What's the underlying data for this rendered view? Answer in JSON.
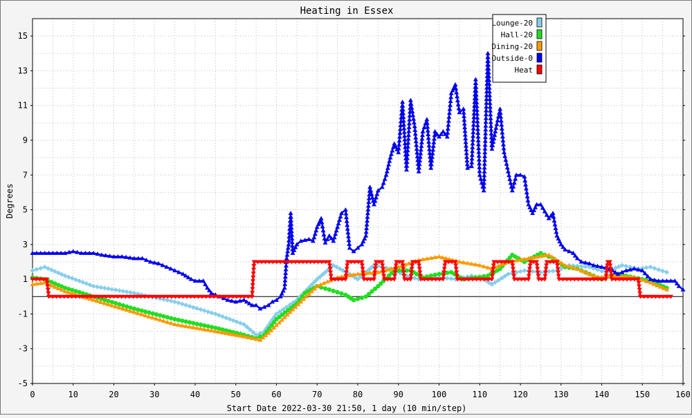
{
  "chart_data": {
    "type": "line",
    "title": "Heating in Essex",
    "xlabel": "Start Date 2022-03-30 21:50, 1 day (10 min/step)",
    "ylabel": "Degrees",
    "xlim": [
      0,
      160
    ],
    "ylim": [
      -5,
      16
    ],
    "x_ticks": [
      0,
      10,
      20,
      30,
      40,
      50,
      60,
      70,
      80,
      90,
      100,
      110,
      120,
      130,
      140,
      150,
      160
    ],
    "y_ticks": [
      -5,
      -3,
      -1,
      1,
      3,
      5,
      7,
      9,
      11,
      13,
      15
    ],
    "grid": true,
    "legend_position": "top-right",
    "series": [
      {
        "name": "Lounge-20",
        "color": "#87ceeb",
        "marker": "diamond",
        "points": [
          [
            0,
            1.5
          ],
          [
            3,
            1.7
          ],
          [
            8,
            1.2
          ],
          [
            15,
            0.6
          ],
          [
            25,
            0.2
          ],
          [
            35,
            -0.3
          ],
          [
            45,
            -1.0
          ],
          [
            52,
            -1.6
          ],
          [
            55,
            -2.2
          ],
          [
            57,
            -2.0
          ],
          [
            60,
            -1.0
          ],
          [
            65,
            -0.2
          ],
          [
            70,
            1.0
          ],
          [
            74,
            1.8
          ],
          [
            78,
            1.3
          ],
          [
            80,
            1.0
          ],
          [
            84,
            1.8
          ],
          [
            88,
            1.6
          ],
          [
            92,
            1.2
          ],
          [
            95,
            1.0
          ],
          [
            100,
            1.1
          ],
          [
            104,
            1.0
          ],
          [
            108,
            1.2
          ],
          [
            111,
            1.0
          ],
          [
            113,
            0.7
          ],
          [
            117,
            1.3
          ],
          [
            121,
            1.5
          ],
          [
            125,
            1.4
          ],
          [
            129,
            1.5
          ],
          [
            132,
            1.8
          ],
          [
            137,
            1.7
          ],
          [
            141,
            1.4
          ],
          [
            145,
            1.8
          ],
          [
            149,
            1.6
          ],
          [
            152,
            1.7
          ],
          [
            156,
            1.4
          ]
        ]
      },
      {
        "name": "Hall-20",
        "color": "#22dd22",
        "marker": "circle",
        "points": [
          [
            0,
            1.1
          ],
          [
            3,
            1.0
          ],
          [
            8,
            0.5
          ],
          [
            15,
            0.0
          ],
          [
            25,
            -0.7
          ],
          [
            35,
            -1.3
          ],
          [
            45,
            -1.8
          ],
          [
            52,
            -2.2
          ],
          [
            55,
            -2.4
          ],
          [
            57,
            -2.2
          ],
          [
            60,
            -1.3
          ],
          [
            65,
            -0.4
          ],
          [
            67,
            0.2
          ],
          [
            70,
            0.6
          ],
          [
            73,
            0.4
          ],
          [
            77,
            0.1
          ],
          [
            79,
            -0.2
          ],
          [
            82,
            0.0
          ],
          [
            85,
            0.6
          ],
          [
            89,
            1.5
          ],
          [
            93,
            1.5
          ],
          [
            96,
            1.1
          ],
          [
            100,
            1.3
          ],
          [
            103,
            1.4
          ],
          [
            106,
            1.0
          ],
          [
            109,
            1.1
          ],
          [
            112,
            1.2
          ],
          [
            115,
            1.6
          ],
          [
            118,
            2.4
          ],
          [
            121,
            2.0
          ],
          [
            125,
            2.5
          ],
          [
            128,
            2.2
          ],
          [
            131,
            1.7
          ],
          [
            134,
            1.6
          ],
          [
            137,
            1.3
          ],
          [
            140,
            1.0
          ],
          [
            144,
            1.3
          ],
          [
            148,
            1.1
          ],
          [
            152,
            0.9
          ],
          [
            156,
            0.5
          ]
        ]
      },
      {
        "name": "Dining-20",
        "color": "#ff9900",
        "marker": "triangle",
        "points": [
          [
            0,
            0.7
          ],
          [
            3,
            0.8
          ],
          [
            8,
            0.3
          ],
          [
            15,
            -0.2
          ],
          [
            25,
            -0.9
          ],
          [
            35,
            -1.6
          ],
          [
            45,
            -2.0
          ],
          [
            52,
            -2.3
          ],
          [
            56,
            -2.5
          ],
          [
            58,
            -2.1
          ],
          [
            62,
            -1.2
          ],
          [
            66,
            -0.3
          ],
          [
            70,
            0.6
          ],
          [
            75,
            1.1
          ],
          [
            80,
            1.3
          ],
          [
            85,
            1.4
          ],
          [
            90,
            1.7
          ],
          [
            95,
            2.1
          ],
          [
            100,
            2.3
          ],
          [
            105,
            2.0
          ],
          [
            110,
            1.8
          ],
          [
            113,
            1.6
          ],
          [
            117,
            2.0
          ],
          [
            122,
            2.2
          ],
          [
            127,
            2.4
          ],
          [
            131,
            1.8
          ],
          [
            135,
            1.5
          ],
          [
            139,
            1.1
          ],
          [
            143,
            1.2
          ],
          [
            148,
            1.1
          ],
          [
            152,
            0.8
          ],
          [
            156,
            0.4
          ]
        ]
      },
      {
        "name": "Outside-0",
        "color": "#0000ee",
        "marker": "triangle",
        "points": [
          [
            0,
            2.5
          ],
          [
            3,
            2.5
          ],
          [
            5,
            2.5
          ],
          [
            8,
            2.5
          ],
          [
            10,
            2.6
          ],
          [
            12,
            2.5
          ],
          [
            15,
            2.5
          ],
          [
            17,
            2.4
          ],
          [
            20,
            2.3
          ],
          [
            22,
            2.3
          ],
          [
            25,
            2.2
          ],
          [
            27,
            2.2
          ],
          [
            29,
            2.0
          ],
          [
            31,
            1.9
          ],
          [
            33,
            1.7
          ],
          [
            35,
            1.5
          ],
          [
            37,
            1.3
          ],
          [
            39,
            1.0
          ],
          [
            40,
            0.9
          ],
          [
            42,
            0.9
          ],
          [
            43,
            0.5
          ],
          [
            44,
            0.2
          ],
          [
            46,
            0.0
          ],
          [
            48,
            -0.2
          ],
          [
            50,
            -0.3
          ],
          [
            52,
            -0.2
          ],
          [
            54,
            -0.5
          ],
          [
            55,
            -0.5
          ],
          [
            56,
            -0.7
          ],
          [
            57,
            -0.6
          ],
          [
            58,
            -0.5
          ],
          [
            59,
            -0.3
          ],
          [
            60,
            -0.2
          ],
          [
            61,
            0.0
          ],
          [
            62,
            0.5
          ],
          [
            62.5,
            2.2
          ],
          [
            63,
            3.0
          ],
          [
            63.5,
            4.8
          ],
          [
            64,
            2.5
          ],
          [
            65,
            3.0
          ],
          [
            66,
            3.2
          ],
          [
            68,
            3.3
          ],
          [
            69,
            3.2
          ],
          [
            70,
            4.0
          ],
          [
            71,
            4.5
          ],
          [
            72,
            3.1
          ],
          [
            73,
            3.5
          ],
          [
            74,
            3.2
          ],
          [
            75,
            4.0
          ],
          [
            76,
            4.8
          ],
          [
            77,
            5.0
          ],
          [
            78,
            2.8
          ],
          [
            79,
            2.6
          ],
          [
            80,
            2.8
          ],
          [
            81,
            3.0
          ],
          [
            82,
            3.5
          ],
          [
            83,
            6.3
          ],
          [
            84,
            5.3
          ],
          [
            85,
            6.1
          ],
          [
            86,
            6.3
          ],
          [
            87,
            7.0
          ],
          [
            88,
            8.0
          ],
          [
            89,
            8.8
          ],
          [
            90,
            8.3
          ],
          [
            91,
            11.2
          ],
          [
            92,
            7.3
          ],
          [
            93,
            11.3
          ],
          [
            94,
            9.8
          ],
          [
            95,
            7.2
          ],
          [
            96,
            9.5
          ],
          [
            97,
            10.2
          ],
          [
            98,
            7.4
          ],
          [
            99,
            9.5
          ],
          [
            100,
            9.2
          ],
          [
            101,
            9.5
          ],
          [
            102,
            9.2
          ],
          [
            103,
            11.7
          ],
          [
            104,
            12.2
          ],
          [
            105,
            10.6
          ],
          [
            106,
            10.8
          ],
          [
            107,
            7.4
          ],
          [
            108,
            7.5
          ],
          [
            109,
            12.5
          ],
          [
            110,
            7.0
          ],
          [
            111,
            6.1
          ],
          [
            112,
            14.0
          ],
          [
            113,
            8.5
          ],
          [
            114,
            9.7
          ],
          [
            115,
            10.8
          ],
          [
            116,
            8.3
          ],
          [
            117,
            7.2
          ],
          [
            118,
            6.1
          ],
          [
            119,
            7.0
          ],
          [
            120,
            7.0
          ],
          [
            121,
            6.9
          ],
          [
            122,
            5.3
          ],
          [
            123,
            4.8
          ],
          [
            124,
            5.3
          ],
          [
            125,
            5.3
          ],
          [
            126,
            4.9
          ],
          [
            127,
            4.5
          ],
          [
            128,
            4.8
          ],
          [
            129,
            3.5
          ],
          [
            130,
            3.0
          ],
          [
            131,
            2.7
          ],
          [
            132,
            2.6
          ],
          [
            133,
            2.5
          ],
          [
            134,
            2.2
          ],
          [
            135,
            2.0
          ],
          [
            137,
            1.9
          ],
          [
            138,
            1.8
          ],
          [
            140,
            1.7
          ],
          [
            142,
            1.6
          ],
          [
            144,
            1.3
          ],
          [
            146,
            1.5
          ],
          [
            148,
            1.6
          ],
          [
            150,
            1.5
          ],
          [
            152,
            1.0
          ],
          [
            154,
            0.9
          ],
          [
            156,
            0.9
          ],
          [
            158,
            0.9
          ],
          [
            159,
            0.6
          ],
          [
            160,
            0.4
          ]
        ]
      },
      {
        "name": "Heat",
        "color": "#ff0000",
        "marker": "triangle-down",
        "points": [
          [
            0,
            1
          ],
          [
            3.5,
            1
          ],
          [
            4,
            0
          ],
          [
            54,
            0
          ],
          [
            54.5,
            2
          ],
          [
            73,
            2
          ],
          [
            73.5,
            1
          ],
          [
            77,
            1
          ],
          [
            77.5,
            2
          ],
          [
            81,
            2
          ],
          [
            81.5,
            1
          ],
          [
            84,
            1
          ],
          [
            84.5,
            2
          ],
          [
            86,
            2
          ],
          [
            86.5,
            1
          ],
          [
            89,
            1
          ],
          [
            89.5,
            2
          ],
          [
            91,
            2
          ],
          [
            91.5,
            1
          ],
          [
            93,
            1
          ],
          [
            93.5,
            2
          ],
          [
            95,
            2
          ],
          [
            95.5,
            1
          ],
          [
            101,
            1
          ],
          [
            101.5,
            2
          ],
          [
            104,
            2
          ],
          [
            104.5,
            1
          ],
          [
            113,
            1
          ],
          [
            113.5,
            2
          ],
          [
            118,
            2
          ],
          [
            118.5,
            1
          ],
          [
            122,
            1
          ],
          [
            122.5,
            2
          ],
          [
            124,
            2
          ],
          [
            124.5,
            1
          ],
          [
            126,
            1
          ],
          [
            126.5,
            2
          ],
          [
            129,
            2
          ],
          [
            129.5,
            1
          ],
          [
            141,
            1
          ],
          [
            141.5,
            2
          ],
          [
            142,
            2
          ],
          [
            142.5,
            1
          ],
          [
            149,
            1
          ],
          [
            149.5,
            0
          ],
          [
            157,
            0
          ]
        ]
      }
    ]
  }
}
